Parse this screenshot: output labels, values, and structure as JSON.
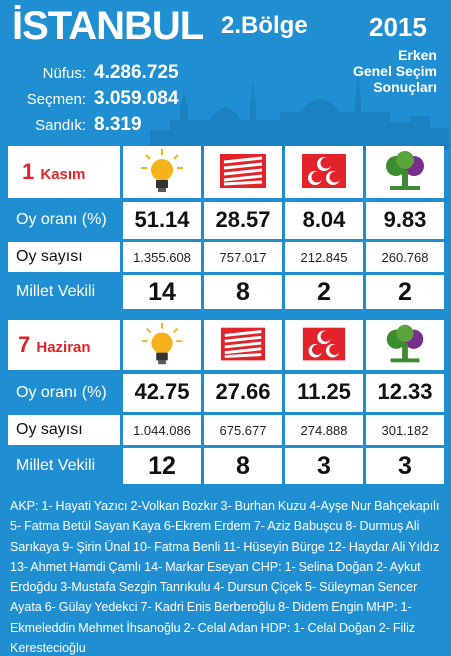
{
  "header": {
    "title": "İSTANBUL",
    "region": "2.Bölge",
    "year": "2015",
    "subtitle_line1": "Erken",
    "subtitle_line2": "Genel Seçim",
    "subtitle_line3": "Sonuçları"
  },
  "stats": [
    {
      "label": "Nüfus:",
      "value": "4.286.725"
    },
    {
      "label": "Seçmen:",
      "value": "3.059.084"
    },
    {
      "label": "Sandık:",
      "value": "8.319"
    }
  ],
  "row_labels": {
    "vote_rate": "Oy oranı (%)",
    "vote_count": "Oy sayısı",
    "deputies": "Millet Vekili"
  },
  "parties": [
    "AKP",
    "CHP",
    "MHP",
    "HDP"
  ],
  "icons": [
    "akp-bulb-icon",
    "chp-six-arrows-icon",
    "mhp-crescents-icon",
    "hdp-tree-icon"
  ],
  "colors": {
    "background": "#1f8fd1",
    "date": "#e2242a",
    "akp_yellow": "#f6b21b",
    "chp_red": "#e2242a",
    "mhp_red": "#e2242a",
    "hdp_green": "#3c8d2f",
    "hdp_purple": "#7b2d8b"
  },
  "elections": [
    {
      "date_num": "1",
      "date_month": "Kasım",
      "vote_rates": [
        "51.14",
        "28.57",
        "8.04",
        "9.83"
      ],
      "vote_counts": [
        "1.355.608",
        "757.017",
        "212.845",
        "260.768"
      ],
      "deputies": [
        "14",
        "8",
        "2",
        "2"
      ]
    },
    {
      "date_num": "7",
      "date_month": "Haziran",
      "vote_rates": [
        "42.75",
        "27.66",
        "11.25",
        "12.33"
      ],
      "vote_counts": [
        "1.044.086",
        "675.677",
        "274.888",
        "301.182"
      ],
      "deputies": [
        "12",
        "8",
        "3",
        "3"
      ]
    }
  ],
  "footer_text": "AKP: 1- Hayati Yazıcı 2-Volkan Bozkır 3- Burhan Kuzu 4-Ayşe Nur Bahçekapılı 5- Fatma Betül Sayan Kaya 6-Ekrem Erdem 7- Aziz Babuşcu 8- Durmuş Ali Sarıkaya 9- Şirin Ünal 10- Fatma Benli 11- Hüseyin Bürge 12- Haydar Ali Yıldız 13- Ahmet Hamdi Çamlı 14- Markar Eseyan CHP: 1- Selina Doğan 2- Aykut Erdoğdu 3-Mustafa Sezgin Tanrıkulu 4- Dursun Çiçek 5- Süleyman Sencer Ayata 6- Gülay Yedekci 7- Kadri Enis Berberoğlu 8- Didem Engin MHP: 1- Ekmeleddin Mehmet İhsanoğlu 2- Celal Adan HDP: 1- Celal Doğan 2- Filiz Kerestecioğlu"
}
